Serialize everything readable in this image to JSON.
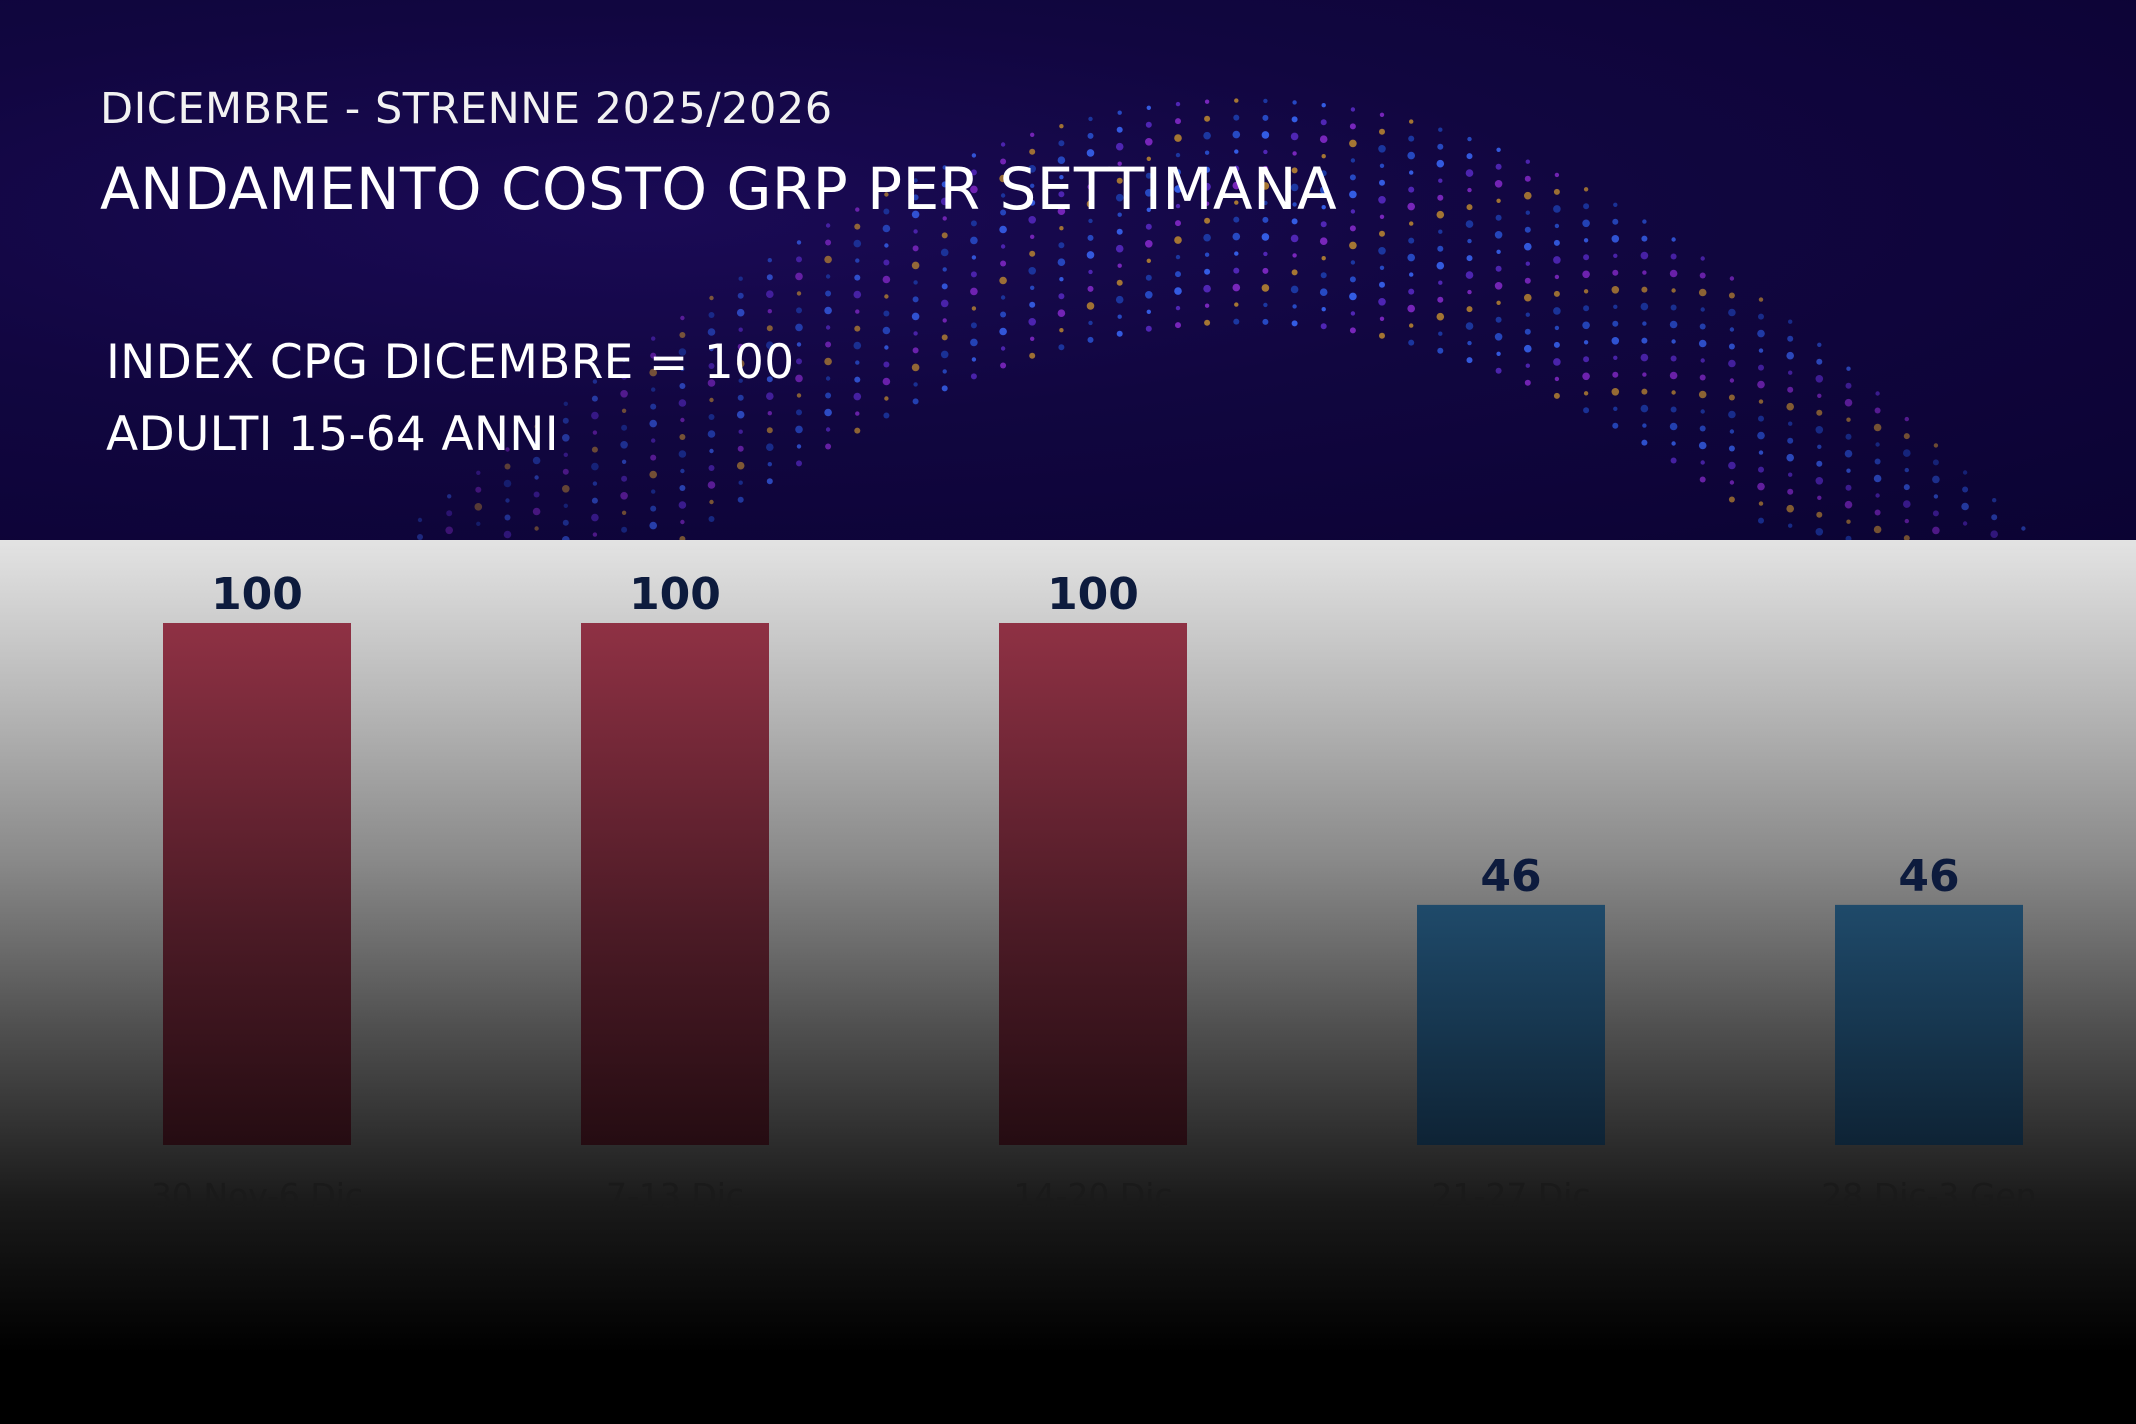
{
  "header": {
    "subtitle": "DICEMBRE - STRENNE 2025/2026",
    "title": "ANDAMENTO COSTO GRP PER SETTIMANA"
  },
  "notes": {
    "index": "INDEX CPG DICEMBRE = 100",
    "target": "ADULTI 15-64 ANNI"
  },
  "colors": {
    "bar_high": "#8f3144",
    "bar_low": "#1f4a6a",
    "value_label": "#0d1b3d",
    "category_label": "#1a1a1a"
  },
  "chart_data": {
    "type": "bar",
    "title": "ANDAMENTO COSTO GRP PER SETTIMANA",
    "categories": [
      "30 Nov-6 Dic",
      "7-13 Dic",
      "14-20 Dic",
      "21-27 Dic",
      "28 Dic-3 Gen"
    ],
    "values": [
      100,
      100,
      100,
      46,
      46
    ],
    "labels": [
      "100",
      "100",
      "100",
      "46",
      "46"
    ],
    "bar_color_groups": [
      "high",
      "high",
      "high",
      "low",
      "low"
    ],
    "ylim": [
      0,
      100
    ],
    "grid": false,
    "legend": "none"
  }
}
